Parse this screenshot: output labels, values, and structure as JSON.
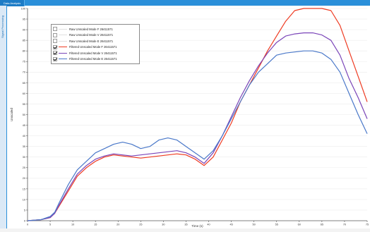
{
  "window": {
    "tab_label": "Data Analysis",
    "side_label": "Signal Processing"
  },
  "legend": {
    "items": [
      {
        "label": "Raw Unscaled Mode F 26411571",
        "checked": false,
        "color": "#e0e0e0"
      },
      {
        "label": "Raw Unscaled Mode V 26411571",
        "checked": false,
        "color": "#e0e0e0"
      },
      {
        "label": "Raw Unscaled Mode E 26411571",
        "checked": false,
        "color": "#e0e0e0"
      },
      {
        "label": "Filtered Unscaled Mode F 26411571",
        "checked": true,
        "color": "#ee3b22"
      },
      {
        "label": "Filtered Unscaled Mode V 26411571",
        "checked": true,
        "color": "#7a45b8"
      },
      {
        "label": "Filtered Unscaled Mode E 26411571",
        "checked": true,
        "color": "#4a78c9"
      }
    ]
  },
  "chart_data": {
    "type": "line",
    "xlabel": "Time (s)",
    "ylabel": "Unscaled",
    "xlim": [
      0,
      75
    ],
    "ylim": [
      0,
      100
    ],
    "xticks": [
      0,
      5,
      10,
      15,
      20,
      25,
      30,
      35,
      40,
      45,
      50,
      55,
      60,
      65,
      70,
      75
    ],
    "yticks": [
      0,
      5,
      10,
      15,
      20,
      25,
      30,
      35,
      40,
      45,
      50,
      55,
      60,
      65,
      70,
      75,
      80,
      85,
      90,
      95,
      100
    ],
    "grid": "horizontal",
    "legend_position": "top-left",
    "series": [
      {
        "name": "Filtered Unscaled Mode F 26411571",
        "color": "#ee3b22",
        "x": [
          0,
          3,
          5,
          6,
          7,
          9,
          11,
          13,
          15,
          17,
          19,
          21,
          23,
          25,
          27,
          29,
          31,
          33,
          35,
          37,
          39,
          41,
          43,
          45,
          47,
          49,
          51,
          53,
          55,
          57,
          59,
          61,
          63,
          65,
          67,
          69,
          71,
          73,
          75
        ],
        "y": [
          0,
          0.5,
          1.5,
          3.5,
          7,
          14,
          21,
          25,
          28,
          30,
          31,
          30.5,
          30,
          29.5,
          30,
          30.5,
          31,
          31.5,
          31,
          29,
          26,
          30,
          38,
          46,
          56,
          64,
          72,
          80,
          87,
          94,
          99,
          100,
          100,
          100,
          99,
          92,
          80,
          68,
          56
        ]
      },
      {
        "name": "Filtered Unscaled Mode V 26411571",
        "color": "#7a45b8",
        "x": [
          0,
          3,
          5,
          6,
          7,
          9,
          11,
          13,
          15,
          17,
          19,
          21,
          23,
          25,
          27,
          29,
          31,
          33,
          35,
          37,
          39,
          41,
          43,
          45,
          47,
          49,
          51,
          53,
          55,
          57,
          59,
          61,
          63,
          65,
          67,
          69,
          71,
          73,
          75
        ],
        "y": [
          0,
          0.5,
          1.5,
          3.5,
          7.5,
          15,
          22,
          26,
          29,
          30.5,
          31.5,
          31,
          30.5,
          31,
          31.5,
          32,
          32.5,
          33,
          32,
          30,
          27,
          32,
          40,
          49,
          58,
          66,
          73,
          79,
          84,
          87,
          88,
          88.5,
          88.5,
          87.5,
          85,
          78,
          67,
          58,
          48
        ]
      },
      {
        "name": "Filtered Unscaled Mode E 26411571",
        "color": "#4a78c9",
        "x": [
          0,
          3,
          5,
          6,
          7,
          9,
          11,
          13,
          15,
          17,
          19,
          21,
          23,
          25,
          27,
          29,
          31,
          33,
          35,
          37,
          39,
          41,
          43,
          45,
          47,
          49,
          51,
          53,
          55,
          57,
          59,
          61,
          63,
          65,
          67,
          69,
          71,
          73,
          75
        ],
        "y": [
          0,
          0.5,
          2,
          4,
          8.5,
          17,
          24,
          28,
          32,
          34,
          36,
          37,
          36,
          34,
          35,
          38,
          39,
          38,
          35,
          32,
          29,
          33,
          40,
          48,
          56,
          64,
          70,
          74,
          78,
          79,
          79.5,
          80,
          80,
          79,
          76,
          70,
          60,
          50,
          41
        ]
      }
    ]
  }
}
